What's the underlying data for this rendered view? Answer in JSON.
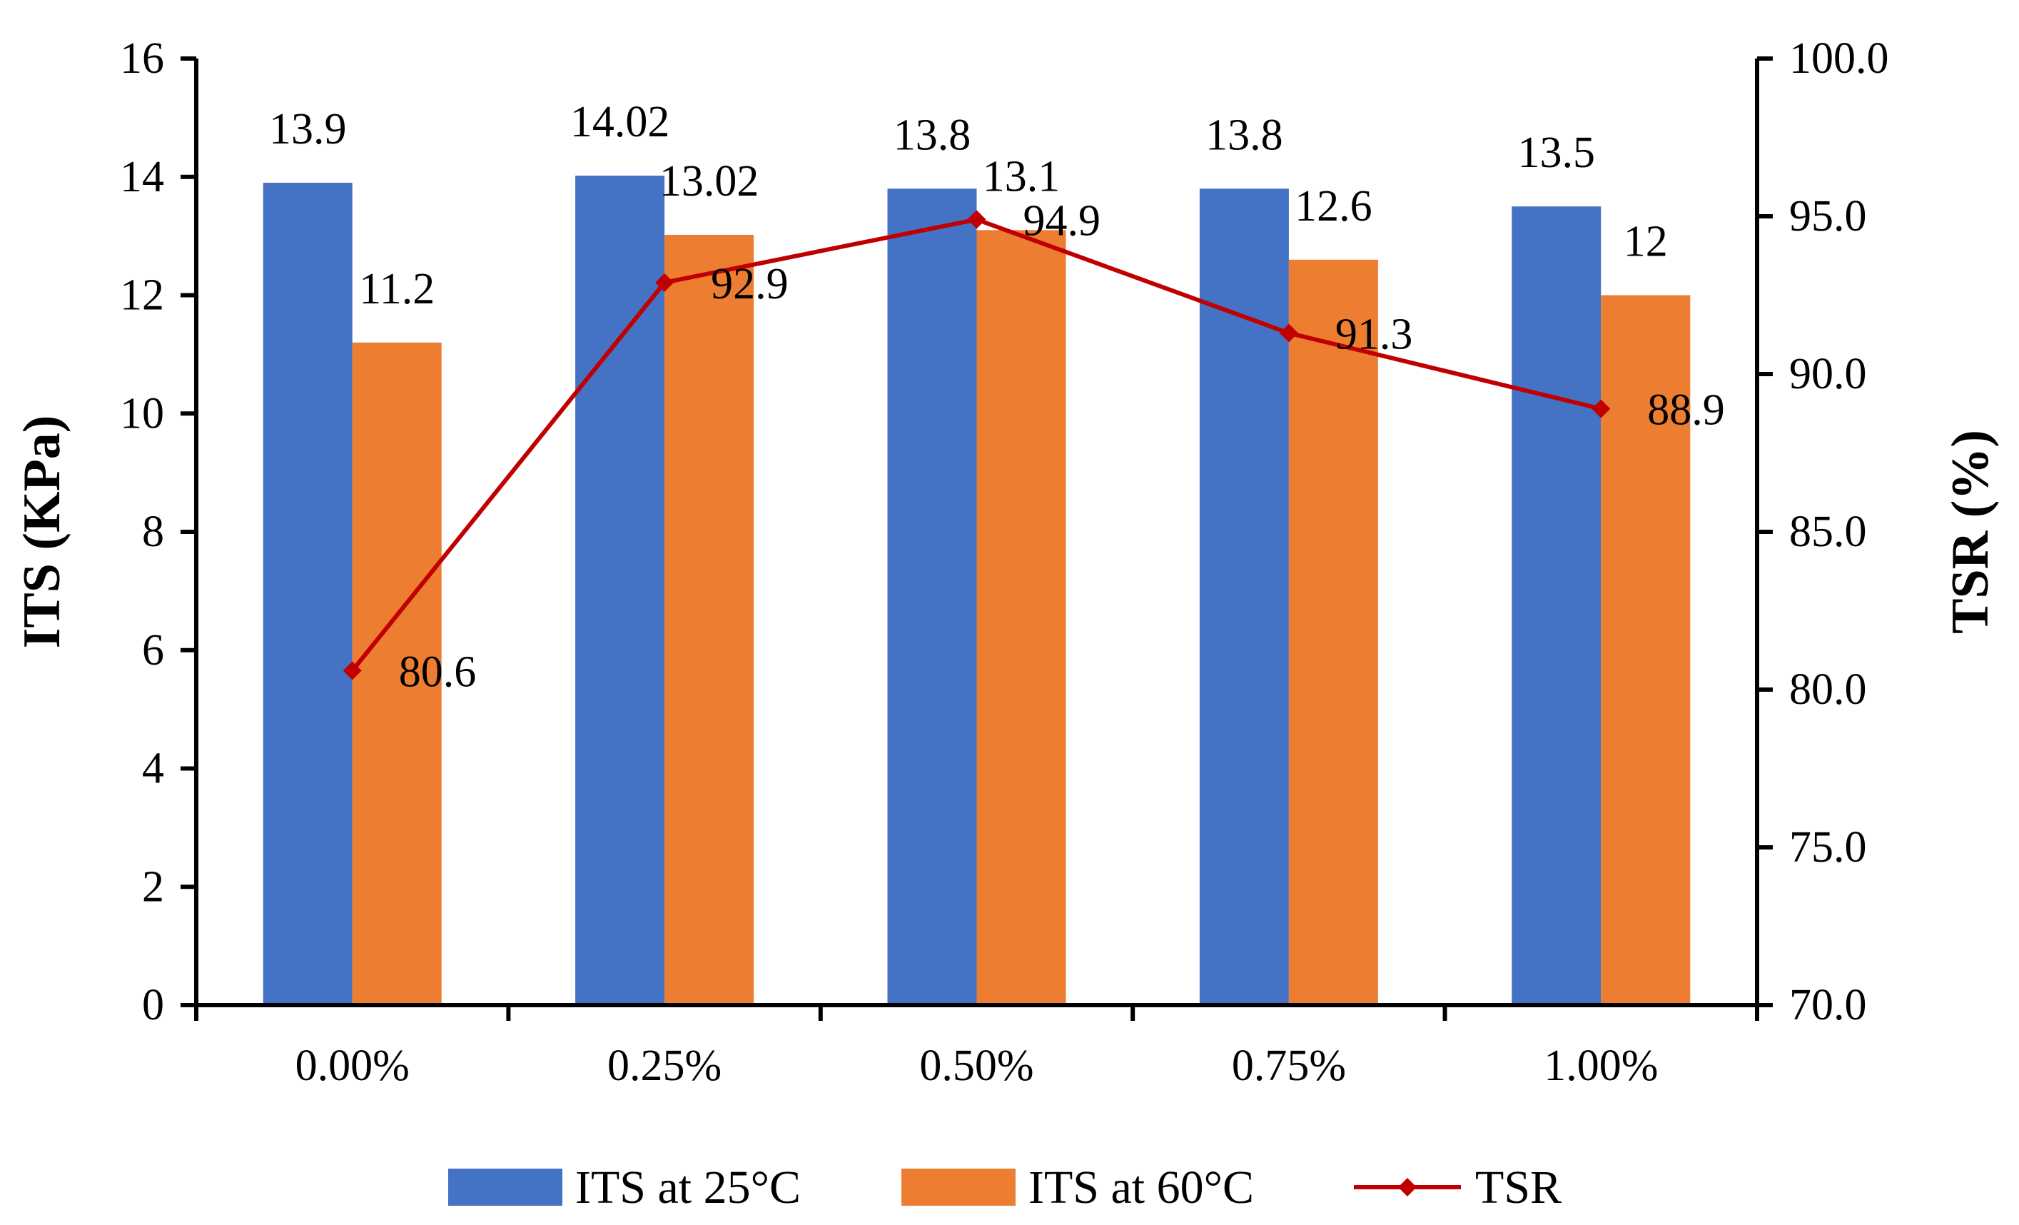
{
  "chart_data": {
    "type": "bar",
    "categories": [
      "0.00%",
      "0.25%",
      "0.50%",
      "0.75%",
      "1.00%"
    ],
    "series": [
      {
        "name": "ITS at 25°C",
        "type": "bar",
        "axis": "left",
        "color": "#4472C4",
        "values": [
          13.9,
          14.02,
          13.8,
          13.8,
          13.5
        ],
        "labels": [
          "13.9",
          "14.02",
          "13.8",
          "13.8",
          "13.5"
        ]
      },
      {
        "name": "ITS at 60°C",
        "type": "bar",
        "axis": "left",
        "color": "#ED7D31",
        "values": [
          11.2,
          13.02,
          13.1,
          12.6,
          12
        ],
        "labels": [
          "11.2",
          "13.02",
          "13.1",
          "12.6",
          "12"
        ]
      },
      {
        "name": "TSR",
        "type": "line",
        "axis": "right",
        "color": "#C00000",
        "marker": "diamond",
        "values": [
          80.6,
          92.9,
          94.9,
          91.3,
          88.9
        ],
        "labels": [
          "80.6",
          "92.9",
          "94.9",
          "91.3",
          "88.9"
        ]
      }
    ],
    "ylabel": "ITS (KPa)",
    "y2label": "TSR (%)",
    "ylim": [
      0,
      16
    ],
    "y2lim": [
      70,
      100
    ],
    "yticks": [
      "0",
      "2",
      "4",
      "6",
      "8",
      "10",
      "12",
      "14",
      "16"
    ],
    "y2ticks": [
      "70.0",
      "75.0",
      "80.0",
      "85.0",
      "90.0",
      "95.0",
      "100.0"
    ],
    "grid": false,
    "legend": "bottom"
  }
}
